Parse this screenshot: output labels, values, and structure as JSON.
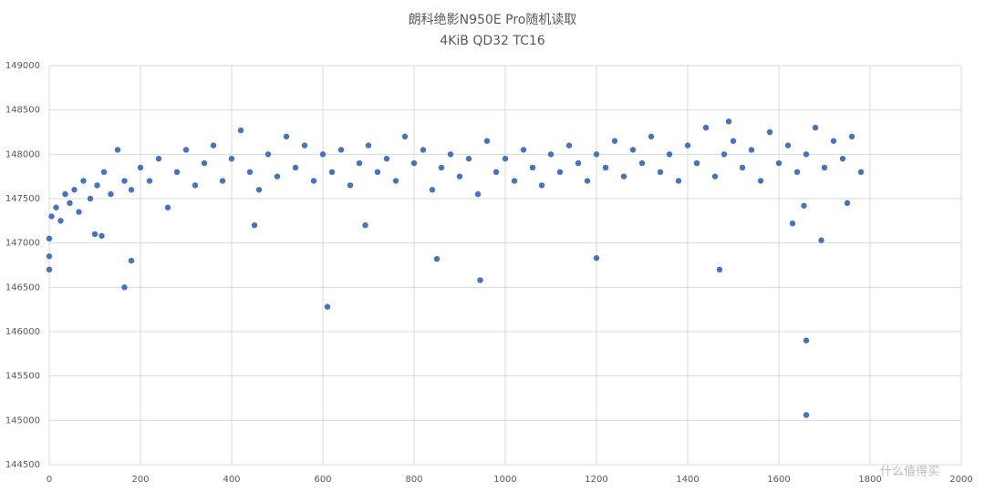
{
  "chart_data": {
    "type": "scatter",
    "title": "朗科绝影N950E Pro随机读取",
    "subtitle": "4KiB QD32 TC16",
    "watermark": "什么值得买",
    "color": "#4472c4",
    "grid": true,
    "xlim": [
      0,
      2000
    ],
    "xticks": [
      0,
      200,
      400,
      600,
      800,
      1000,
      1200,
      1400,
      1600,
      1800,
      2000
    ],
    "ylim": [
      144500,
      149000
    ],
    "yticks": [
      144500,
      145000,
      145500,
      146000,
      146500,
      147000,
      147500,
      148000,
      148500,
      149000
    ],
    "x": [
      5,
      15,
      25,
      35,
      45,
      55,
      65,
      75,
      90,
      105,
      120,
      135,
      150,
      165,
      180,
      200,
      220,
      240,
      260,
      280,
      300,
      320,
      340,
      360,
      380,
      400,
      420,
      440,
      460,
      480,
      500,
      520,
      540,
      560,
      580,
      600,
      620,
      640,
      660,
      680,
      700,
      720,
      740,
      760,
      780,
      800,
      820,
      840,
      860,
      880,
      900,
      920,
      940,
      960,
      980,
      1000,
      1020,
      1040,
      1060,
      1080,
      1100,
      1120,
      1140,
      1160,
      1180,
      1200,
      1220,
      1240,
      1260,
      1280,
      1300,
      1320,
      1340,
      1360,
      1380,
      1400,
      1420,
      1440,
      1460,
      1480,
      1500,
      1520,
      1540,
      1560,
      1580,
      1600,
      1620,
      1640,
      1660,
      1680,
      1700,
      1720,
      1740,
      1760,
      1780,
      0,
      0,
      0,
      100,
      115,
      165,
      180,
      450,
      610,
      693,
      850,
      945,
      1200,
      1470,
      1630,
      1655,
      1660,
      1660,
      1693,
      1750,
      1490
    ],
    "values": [
      147300,
      147400,
      147250,
      147550,
      147450,
      147600,
      147350,
      147700,
      147500,
      147650,
      147800,
      147550,
      148050,
      147700,
      147600,
      147850,
      147700,
      147950,
      147400,
      147800,
      148050,
      147650,
      147900,
      148100,
      147700,
      147950,
      148270,
      147800,
      147600,
      148000,
      147750,
      148200,
      147850,
      148100,
      147700,
      148000,
      147800,
      148050,
      147650,
      147900,
      148100,
      147800,
      147950,
      147700,
      148200,
      147900,
      148050,
      147600,
      147850,
      148000,
      147750,
      147950,
      147550,
      148150,
      147800,
      147950,
      147700,
      148050,
      147850,
      147650,
      148000,
      147800,
      148100,
      147900,
      147700,
      148000,
      147850,
      148150,
      147750,
      148050,
      147900,
      148200,
      147800,
      148000,
      147700,
      148100,
      147900,
      148300,
      147750,
      148000,
      148150,
      147850,
      148050,
      147700,
      148250,
      147900,
      148100,
      147800,
      148000,
      148300,
      147850,
      148150,
      147950,
      148200,
      147800,
      146700,
      146850,
      147050,
      147100,
      147080,
      146500,
      146800,
      147200,
      146280,
      147200,
      146820,
      146580,
      146830,
      146700,
      147220,
      147420,
      145900,
      145060,
      147030,
      147450,
      148370
    ]
  }
}
